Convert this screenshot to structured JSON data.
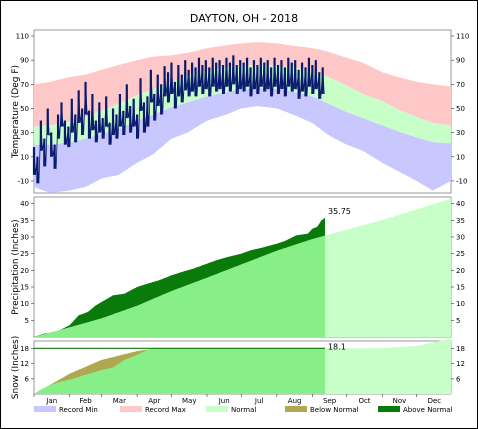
{
  "chart_data": [
    {
      "type": "area",
      "title": "DAYTON, OH - 2018",
      "ylabel": "Temperature (Deg F)",
      "ylim": [
        -20,
        115
      ],
      "yticks": [
        -10,
        10,
        30,
        50,
        70,
        90,
        110
      ],
      "months": [
        "Jan",
        "Feb",
        "Mar",
        "Apr",
        "May",
        "Jun",
        "Jul",
        "Aug",
        "Sep",
        "Oct",
        "Nov",
        "Dec"
      ],
      "colors": {
        "record_min": "#c8c8ff",
        "record_max": "#ffc8c8",
        "normal": "#c8ffc8",
        "observed": "#0a1a6e"
      },
      "x_day": [
        1,
        15,
        32,
        46,
        60,
        75,
        91,
        105,
        121,
        135,
        152,
        166,
        182,
        196,
        213,
        227,
        244,
        258,
        274,
        288,
        305,
        319,
        335,
        349,
        365
      ],
      "record_max": [
        70,
        72,
        76,
        78,
        82,
        86,
        90,
        93,
        94,
        96,
        100,
        102,
        104,
        105,
        104,
        102,
        100,
        97,
        92,
        88,
        80,
        76,
        72,
        70,
        68
      ],
      "normal_high": [
        35,
        36,
        39,
        43,
        48,
        54,
        61,
        66,
        72,
        77,
        81,
        84,
        86,
        86,
        85,
        84,
        81,
        76,
        69,
        62,
        56,
        49,
        43,
        38,
        36
      ],
      "normal_low": [
        20,
        20,
        22,
        25,
        29,
        33,
        40,
        45,
        51,
        55,
        60,
        63,
        66,
        67,
        66,
        64,
        60,
        54,
        47,
        42,
        36,
        31,
        26,
        22,
        21
      ],
      "record_min": [
        -15,
        -20,
        -18,
        -15,
        -8,
        -5,
        5,
        12,
        25,
        30,
        40,
        44,
        50,
        52,
        50,
        45,
        38,
        28,
        20,
        15,
        5,
        -2,
        -10,
        -18,
        -10
      ],
      "observed_day": [
        1,
        4,
        7,
        10,
        13,
        16,
        19,
        22,
        25,
        28,
        31,
        34,
        37,
        40,
        43,
        46,
        49,
        52,
        55,
        58,
        61,
        64,
        67,
        70,
        73,
        76,
        79,
        82,
        85,
        88,
        91,
        94,
        97,
        100,
        103,
        106,
        109,
        112,
        115,
        118,
        121,
        124,
        127,
        130,
        133,
        136,
        139,
        142,
        145,
        148,
        151,
        154,
        157,
        160,
        163,
        166,
        169,
        172,
        175,
        178,
        181,
        184,
        187,
        190,
        193,
        196,
        199,
        202,
        205,
        208,
        211,
        214,
        217,
        220,
        223,
        226,
        229,
        232,
        235,
        238,
        241,
        244,
        247,
        250,
        253
      ],
      "observed_high": [
        18,
        10,
        40,
        25,
        50,
        30,
        20,
        45,
        55,
        40,
        35,
        58,
        45,
        65,
        50,
        72,
        48,
        62,
        40,
        55,
        42,
        60,
        38,
        50,
        45,
        62,
        48,
        70,
        52,
        58,
        45,
        75,
        55,
        60,
        82,
        62,
        78,
        70,
        85,
        80,
        88,
        72,
        86,
        78,
        90,
        82,
        88,
        84,
        92,
        86,
        90,
        84,
        92,
        88,
        90,
        86,
        92,
        88,
        94,
        86,
        90,
        88,
        92,
        84,
        90,
        86,
        92,
        88,
        90,
        84,
        92,
        86,
        90,
        84,
        92,
        88,
        90,
        82,
        88,
        84,
        92,
        86,
        90,
        80,
        84
      ],
      "observed_low": [
        -5,
        -12,
        15,
        2,
        28,
        10,
        0,
        25,
        35,
        20,
        18,
        30,
        22,
        38,
        28,
        45,
        25,
        32,
        22,
        30,
        25,
        35,
        20,
        28,
        25,
        35,
        28,
        42,
        30,
        35,
        25,
        48,
        30,
        35,
        55,
        40,
        52,
        45,
        60,
        55,
        62,
        50,
        60,
        55,
        65,
        60,
        64,
        60,
        68,
        62,
        66,
        60,
        68,
        64,
        66,
        62,
        68,
        64,
        70,
        62,
        66,
        64,
        68,
        60,
        66,
        62,
        68,
        64,
        66,
        60,
        68,
        62,
        66,
        60,
        68,
        64,
        66,
        58,
        64,
        60,
        68,
        62,
        66,
        58,
        62
      ]
    },
    {
      "type": "area",
      "ylabel": "Precipitation (Inches)",
      "ylim": [
        0,
        42
      ],
      "yticks": [
        5,
        10,
        15,
        20,
        25,
        30,
        35,
        40
      ],
      "annotation": "35.75",
      "colors": {
        "normal": "#c8ffc8",
        "normal_to_date": "#88ee88",
        "above_normal": "#0a7a0a"
      },
      "normal_day": [
        1,
        32,
        60,
        91,
        121,
        152,
        182,
        213,
        244,
        274,
        305,
        335,
        365
      ],
      "normal_accum": [
        0,
        2.9,
        5.6,
        9.4,
        13.8,
        17.8,
        21.8,
        25.9,
        29.4,
        32.2,
        35.1,
        38.3,
        41.5
      ],
      "observed_day": [
        1,
        10,
        20,
        32,
        40,
        48,
        55,
        60,
        70,
        80,
        91,
        100,
        110,
        121,
        130,
        140,
        152,
        160,
        170,
        182,
        190,
        200,
        213,
        220,
        230,
        240,
        244,
        248,
        252,
        255
      ],
      "observed_accum": [
        0,
        1.0,
        1.5,
        3.5,
        6.5,
        7.5,
        9.5,
        10.5,
        12.5,
        13.0,
        15.0,
        16.0,
        17.0,
        18.5,
        19.5,
        20.5,
        22.0,
        23.0,
        24.0,
        25.0,
        26.0,
        26.8,
        28.0,
        28.8,
        30.5,
        31.0,
        32.5,
        33.0,
        35.0,
        35.75
      ]
    },
    {
      "type": "area",
      "ylabel": "Snow (Inches)",
      "ylim": [
        0,
        21
      ],
      "yticks": [
        6,
        12,
        18
      ],
      "annotation": "18.1",
      "colors": {
        "normal": "#c8ffc8",
        "normal_to_date": "#88ee88",
        "below_normal": "#b0a850",
        "above_normal": "#0a7a0a"
      },
      "normal_day": [
        1,
        32,
        60,
        91,
        105,
        121,
        152,
        182,
        213,
        244,
        274,
        305,
        335,
        365
      ],
      "normal_accum": [
        0,
        8.0,
        13.5,
        17.0,
        17.9,
        18.1,
        18.1,
        18.1,
        18.1,
        18.1,
        18.1,
        18.2,
        19.0,
        22.0
      ],
      "observed_day": [
        1,
        8,
        15,
        25,
        35,
        45,
        60,
        70,
        80,
        91,
        100,
        110,
        255
      ],
      "observed_accum": [
        0,
        2.0,
        3.5,
        5.0,
        6.0,
        7.5,
        9.5,
        10.5,
        13.5,
        15.5,
        17.5,
        18.1,
        18.1
      ]
    }
  ],
  "legend": [
    {
      "label": "Record Min",
      "color": "#c8c8ff"
    },
    {
      "label": "Record Max",
      "color": "#ffc8c8"
    },
    {
      "label": "Normal",
      "color": "#c8ffc8"
    },
    {
      "label": "Below Normal",
      "color": "#b0a850"
    },
    {
      "label": "Above Normal",
      "color": "#0a7a0a"
    }
  ]
}
